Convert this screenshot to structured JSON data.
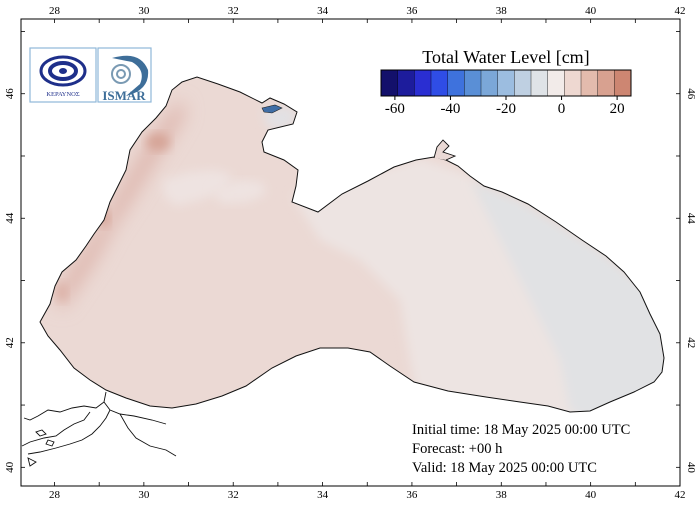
{
  "map": {
    "title": "Total Water Level [cm]",
    "region": "Black Sea",
    "lon_ticks": [
      "28",
      "30",
      "32",
      "34",
      "36",
      "38",
      "40",
      "42"
    ],
    "lat_ticks": [
      "40",
      "42",
      "44",
      "46"
    ],
    "colorbar": {
      "tick_labels": [
        "-60",
        "-40",
        "-20",
        "0",
        "20"
      ],
      "range": [
        -65,
        25
      ],
      "colors": [
        "#13106b",
        "#1d1c9c",
        "#2a2ed2",
        "#2f4de6",
        "#3e72dd",
        "#5a8fd6",
        "#7ba7d8",
        "#9cbde0",
        "#bfd0e2",
        "#dfe3e7",
        "#f2ebe9",
        "#eed8d1",
        "#e3bbad",
        "#d8a190",
        "#cd8672"
      ]
    },
    "logos": [
      "national-observatory-logo",
      "ismar-logo"
    ],
    "logo_text": [
      "ΚΕΡΑΥΝΟΣ",
      "ISMAR"
    ]
  },
  "info": {
    "initial_time": "Initial time: 18 May 2025 00:00 UTC",
    "forecast": "Forecast: +00 h",
    "valid": "Valid: 18 May 2025 00:00 UTC"
  }
}
